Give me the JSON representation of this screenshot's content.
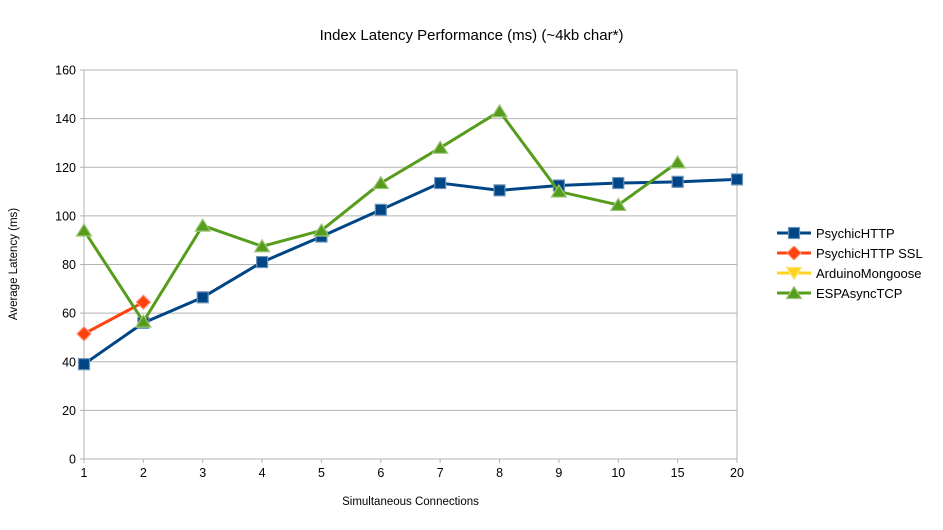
{
  "chart_data": {
    "type": "line",
    "title": "Index Latency Performance (ms) (~4kb char*)",
    "xlabel": "Simultaneous Connections",
    "ylabel": "Average Latency (ms)",
    "categories": [
      "1",
      "2",
      "3",
      "4",
      "5",
      "6",
      "7",
      "8",
      "9",
      "10",
      "15",
      "20"
    ],
    "ylim": [
      0,
      160
    ],
    "yticks": [
      0,
      20,
      40,
      60,
      80,
      100,
      120,
      140,
      160
    ],
    "grid": "horizontal",
    "legend_position": "right",
    "series": [
      {
        "name": "PsychicHTTP",
        "color": "#004586",
        "marker": "square",
        "values": [
          39,
          56,
          66.5,
          81,
          91.5,
          102.5,
          113.5,
          110.5,
          112.5,
          113.5,
          114,
          115
        ]
      },
      {
        "name": "PsychicHTTP SSL",
        "color": "#ff420e",
        "marker": "diamond",
        "values": [
          51.5,
          64.5,
          null,
          null,
          null,
          null,
          null,
          null,
          null,
          null,
          null,
          null
        ]
      },
      {
        "name": "ArduinoMongoose",
        "color": "#ffd320",
        "marker": "triangle-down",
        "values": [
          null,
          null,
          null,
          null,
          null,
          null,
          null,
          null,
          null,
          null,
          null,
          null
        ]
      },
      {
        "name": "ESPAsyncTCP",
        "color": "#579d1c",
        "marker": "triangle-up",
        "values": [
          94,
          56.5,
          96,
          87.5,
          94,
          113.5,
          128,
          143,
          110,
          104.5,
          122,
          null
        ]
      }
    ]
  }
}
